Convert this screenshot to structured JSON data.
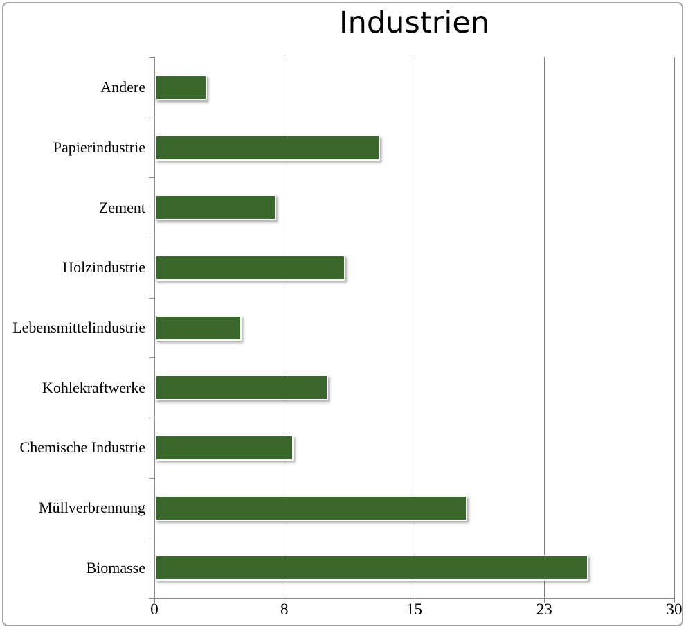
{
  "page": {
    "background": "#ffffff",
    "frame_border_color": "#a3a3a3"
  },
  "chart_data": {
    "type": "bar",
    "orientation": "horizontal",
    "title": "Industrien",
    "categories": [
      "Andere",
      "Papierindustrie",
      "Zement",
      "Holzindustrie",
      "Lebensmittelindustrie",
      "Kohlekraftwerke",
      "Chemische Industrie",
      "Müllverbrennung",
      "Biomasse"
    ],
    "values": [
      3,
      13,
      7,
      11,
      5,
      10,
      8,
      18,
      25
    ],
    "xlabel": "",
    "ylabel": "",
    "xlim": [
      0,
      30
    ],
    "x_ticks": [
      {
        "value": 0,
        "label": "0"
      },
      {
        "value": 7.5,
        "label": "8"
      },
      {
        "value": 15,
        "label": "15"
      },
      {
        "value": 22.5,
        "label": "23"
      },
      {
        "value": 30,
        "label": "30"
      }
    ],
    "grid": true,
    "legend": false,
    "bar_color": "#3a672c",
    "axis_color": "#8c8c8c",
    "grid_color": "#7f7f7f"
  }
}
